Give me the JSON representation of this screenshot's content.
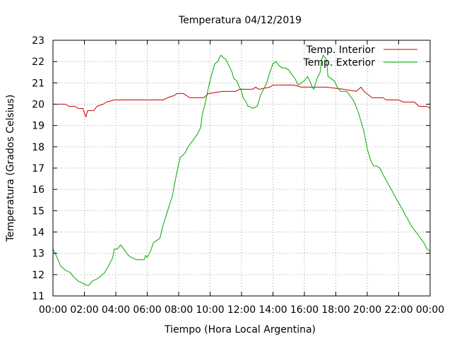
{
  "chart_data": {
    "type": "line",
    "title": "Temperatura 04/12/2019",
    "xlabel": "Tiempo (Hora Local Argentina)",
    "ylabel": "Temperatura (Grados Celsius)",
    "xlim": [
      0,
      24
    ],
    "ylim": [
      11,
      23
    ],
    "x_ticks": [
      "00:00",
      "02:00",
      "04:00",
      "06:00",
      "08:00",
      "10:00",
      "12:00",
      "14:00",
      "16:00",
      "18:00",
      "20:00",
      "22:00",
      "00:00"
    ],
    "y_ticks": [
      "11",
      "12",
      "13",
      "14",
      "15",
      "16",
      "17",
      "18",
      "19",
      "20",
      "21",
      "22",
      "23"
    ],
    "grid": true,
    "legend_position": "top-right",
    "colors": {
      "interior": "#cc0000",
      "exterior": "#00aa00"
    },
    "series": [
      {
        "name": "Temp. Interior",
        "points": [
          [
            0,
            20.0
          ],
          [
            0.8,
            20.0
          ],
          [
            1.0,
            19.9
          ],
          [
            1.4,
            19.9
          ],
          [
            1.6,
            19.8
          ],
          [
            1.9,
            19.8
          ],
          [
            2.0,
            19.6
          ],
          [
            2.1,
            19.4
          ],
          [
            2.2,
            19.7
          ],
          [
            2.6,
            19.7
          ],
          [
            2.8,
            19.9
          ],
          [
            3.2,
            20.0
          ],
          [
            3.4,
            20.1
          ],
          [
            3.9,
            20.2
          ],
          [
            4.5,
            20.2
          ],
          [
            6.5,
            20.2
          ],
          [
            7.0,
            20.2
          ],
          [
            7.3,
            20.3
          ],
          [
            7.7,
            20.4
          ],
          [
            7.9,
            20.5
          ],
          [
            8.3,
            20.5
          ],
          [
            8.5,
            20.4
          ],
          [
            8.7,
            20.3
          ],
          [
            9.6,
            20.3
          ],
          [
            9.9,
            20.5
          ],
          [
            10.8,
            20.6
          ],
          [
            11.6,
            20.6
          ],
          [
            11.9,
            20.7
          ],
          [
            12.7,
            20.7
          ],
          [
            12.9,
            20.8
          ],
          [
            13.1,
            20.7
          ],
          [
            13.8,
            20.8
          ],
          [
            14.0,
            20.9
          ],
          [
            15.3,
            20.9
          ],
          [
            15.8,
            20.8
          ],
          [
            16.7,
            20.8
          ],
          [
            17.0,
            20.8
          ],
          [
            17.4,
            20.8
          ],
          [
            18.5,
            20.7
          ],
          [
            19.3,
            20.6
          ],
          [
            19.6,
            20.8
          ],
          [
            19.8,
            20.6
          ],
          [
            20.3,
            20.3
          ],
          [
            21.0,
            20.3
          ],
          [
            21.2,
            20.2
          ],
          [
            22.0,
            20.2
          ],
          [
            22.3,
            20.1
          ],
          [
            23.0,
            20.1
          ],
          [
            23.3,
            19.9
          ],
          [
            23.8,
            19.9
          ],
          [
            24.0,
            19.8
          ]
        ]
      },
      {
        "name": "Temp. Exterior",
        "points": [
          [
            0,
            13.2
          ],
          [
            0.2,
            12.9
          ],
          [
            0.5,
            12.4
          ],
          [
            0.8,
            12.2
          ],
          [
            1.1,
            12.1
          ],
          [
            1.3,
            11.9
          ],
          [
            1.6,
            11.7
          ],
          [
            1.9,
            11.6
          ],
          [
            2.1,
            11.5
          ],
          [
            2.3,
            11.5
          ],
          [
            2.5,
            11.7
          ],
          [
            2.8,
            11.8
          ],
          [
            3.0,
            11.9
          ],
          [
            3.3,
            12.1
          ],
          [
            3.6,
            12.5
          ],
          [
            3.8,
            12.8
          ],
          [
            3.9,
            13.2
          ],
          [
            4.1,
            13.2
          ],
          [
            4.3,
            13.4
          ],
          [
            4.5,
            13.2
          ],
          [
            4.8,
            12.9
          ],
          [
            5.0,
            12.8
          ],
          [
            5.3,
            12.7
          ],
          [
            5.6,
            12.7
          ],
          [
            5.8,
            12.7
          ],
          [
            5.9,
            12.9
          ],
          [
            6.0,
            12.8
          ],
          [
            6.2,
            13.1
          ],
          [
            6.4,
            13.5
          ],
          [
            6.6,
            13.6
          ],
          [
            6.8,
            13.7
          ],
          [
            7.0,
            14.3
          ],
          [
            7.3,
            15.0
          ],
          [
            7.6,
            15.7
          ],
          [
            7.8,
            16.5
          ],
          [
            8.0,
            17.2
          ],
          [
            8.1,
            17.5
          ],
          [
            8.4,
            17.7
          ],
          [
            8.6,
            18.0
          ],
          [
            8.8,
            18.2
          ],
          [
            9.0,
            18.4
          ],
          [
            9.2,
            18.6
          ],
          [
            9.4,
            18.9
          ],
          [
            9.5,
            19.5
          ],
          [
            9.7,
            20.1
          ],
          [
            9.9,
            20.8
          ],
          [
            10.1,
            21.4
          ],
          [
            10.3,
            21.9
          ],
          [
            10.5,
            22.0
          ],
          [
            10.6,
            22.2
          ],
          [
            10.7,
            22.3
          ],
          [
            10.8,
            22.2
          ],
          [
            11.0,
            22.1
          ],
          [
            11.2,
            21.8
          ],
          [
            11.4,
            21.5
          ],
          [
            11.5,
            21.2
          ],
          [
            11.7,
            21.1
          ],
          [
            11.8,
            20.9
          ],
          [
            12.0,
            20.6
          ],
          [
            12.1,
            20.3
          ],
          [
            12.3,
            20.1
          ],
          [
            12.4,
            19.9
          ],
          [
            12.5,
            19.9
          ],
          [
            12.7,
            19.8
          ],
          [
            13.0,
            19.9
          ],
          [
            13.2,
            20.4
          ],
          [
            13.4,
            20.7
          ],
          [
            13.6,
            21.0
          ],
          [
            13.8,
            21.5
          ],
          [
            14.0,
            21.9
          ],
          [
            14.2,
            22.0
          ],
          [
            14.4,
            21.8
          ],
          [
            14.6,
            21.7
          ],
          [
            14.8,
            21.7
          ],
          [
            15.0,
            21.6
          ],
          [
            15.2,
            21.4
          ],
          [
            15.4,
            21.2
          ],
          [
            15.6,
            20.9
          ],
          [
            15.8,
            21.0
          ],
          [
            16.0,
            21.1
          ],
          [
            16.2,
            21.3
          ],
          [
            16.4,
            21.0
          ],
          [
            16.5,
            20.8
          ],
          [
            16.6,
            20.7
          ],
          [
            16.8,
            21.2
          ],
          [
            17.0,
            21.5
          ],
          [
            17.1,
            22.1
          ],
          [
            17.2,
            22.3
          ],
          [
            17.4,
            22.1
          ],
          [
            17.5,
            21.3
          ],
          [
            17.7,
            21.2
          ],
          [
            17.9,
            21.1
          ],
          [
            18.1,
            20.8
          ],
          [
            18.3,
            20.6
          ],
          [
            18.5,
            20.6
          ],
          [
            18.7,
            20.6
          ],
          [
            18.9,
            20.4
          ],
          [
            19.1,
            20.2
          ],
          [
            19.4,
            19.7
          ],
          [
            19.6,
            19.2
          ],
          [
            19.8,
            18.7
          ],
          [
            20.0,
            17.9
          ],
          [
            20.2,
            17.4
          ],
          [
            20.4,
            17.1
          ],
          [
            20.6,
            17.1
          ],
          [
            20.8,
            17.0
          ],
          [
            21.0,
            16.7
          ],
          [
            21.3,
            16.3
          ],
          [
            21.6,
            15.9
          ],
          [
            21.9,
            15.5
          ],
          [
            22.2,
            15.1
          ],
          [
            22.5,
            14.7
          ],
          [
            22.8,
            14.3
          ],
          [
            23.1,
            14.0
          ],
          [
            23.4,
            13.7
          ],
          [
            23.6,
            13.5
          ],
          [
            23.8,
            13.2
          ],
          [
            24.0,
            13.1
          ]
        ]
      }
    ]
  }
}
